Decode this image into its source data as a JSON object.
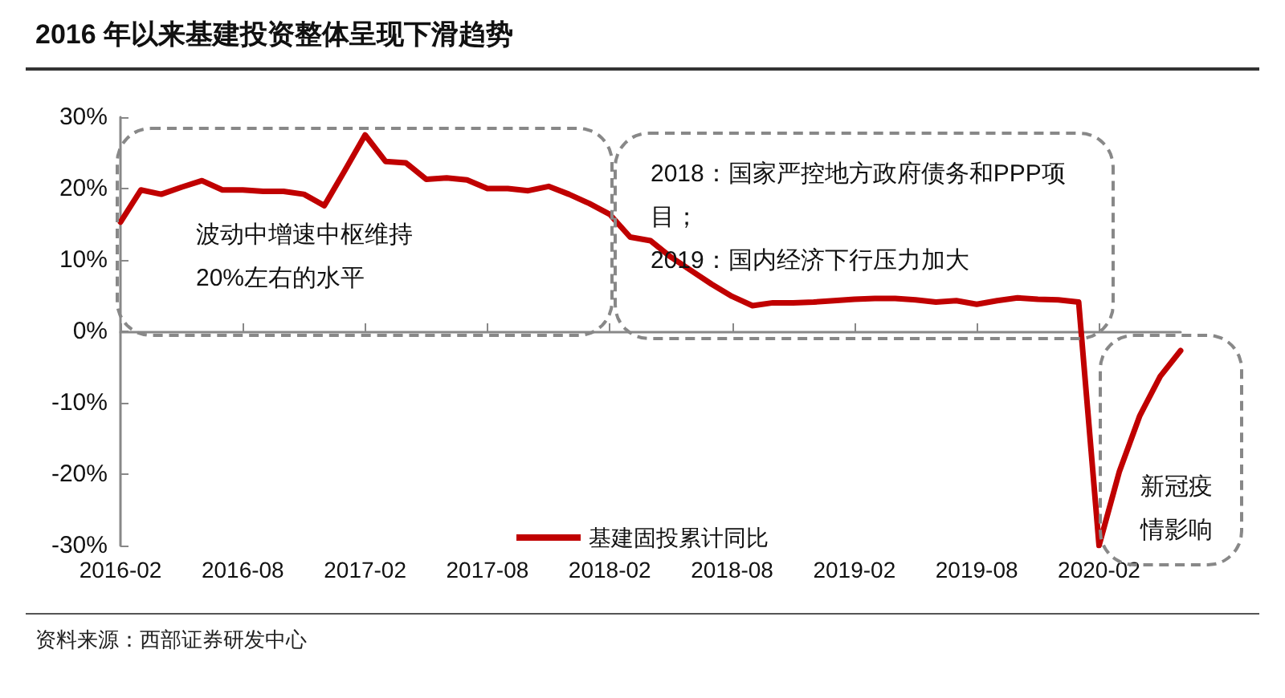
{
  "chart_data": {
    "type": "line",
    "title": "2016 年以来基建投资整体呈现下滑趋势",
    "categories": [
      "2016-02",
      null,
      null,
      null,
      null,
      null,
      "2016-08",
      null,
      null,
      null,
      null,
      null,
      "2017-02",
      null,
      null,
      null,
      null,
      null,
      "2017-08",
      null,
      null,
      null,
      null,
      null,
      "2018-02",
      null,
      null,
      null,
      null,
      null,
      "2018-08",
      null,
      null,
      null,
      null,
      null,
      "2019-02",
      null,
      null,
      null,
      null,
      null,
      "2019-08",
      null,
      null,
      null,
      null,
      null,
      "2020-02",
      null,
      null,
      null,
      null
    ],
    "series": [
      {
        "name": "基建固投累计同比",
        "color": "#c00000",
        "values": [
          15.3,
          19.8,
          19.2,
          20.2,
          21.1,
          19.8,
          19.8,
          19.6,
          19.6,
          19.2,
          17.6,
          22.5,
          27.5,
          23.8,
          23.6,
          21.3,
          21.5,
          21.2,
          20.0,
          20.0,
          19.7,
          20.3,
          19.2,
          17.9,
          16.4,
          13.2,
          12.7,
          10.4,
          8.5,
          6.6,
          4.9,
          3.6,
          4.0,
          4.0,
          4.1,
          4.3,
          4.5,
          4.6,
          4.6,
          4.4,
          4.1,
          4.3,
          3.8,
          4.3,
          4.7,
          4.5,
          4.4,
          4.1,
          -30.0,
          -19.6,
          -11.8,
          -6.3,
          -2.7
        ]
      }
    ],
    "ylim": [
      -30,
      30
    ],
    "yticks": [
      {
        "value": -30,
        "label": "-30%"
      },
      {
        "value": -20,
        "label": "-20%"
      },
      {
        "value": -10,
        "label": "-10%"
      },
      {
        "value": 0,
        "label": "0%"
      },
      {
        "value": 10,
        "label": "10%"
      },
      {
        "value": 20,
        "label": "20%"
      },
      {
        "value": 30,
        "label": "30%"
      }
    ],
    "legend": "bottom",
    "marker": "none",
    "line_style": "solid",
    "annotations": [
      "波动中增速中枢维持20%左右的水平",
      "2018：国家严控地方政府债务和PPP项目；\n2019：国内经济下行压力加大",
      "新冠疫情影响",
      "资料来源：西部证券研发中心"
    ]
  }
}
